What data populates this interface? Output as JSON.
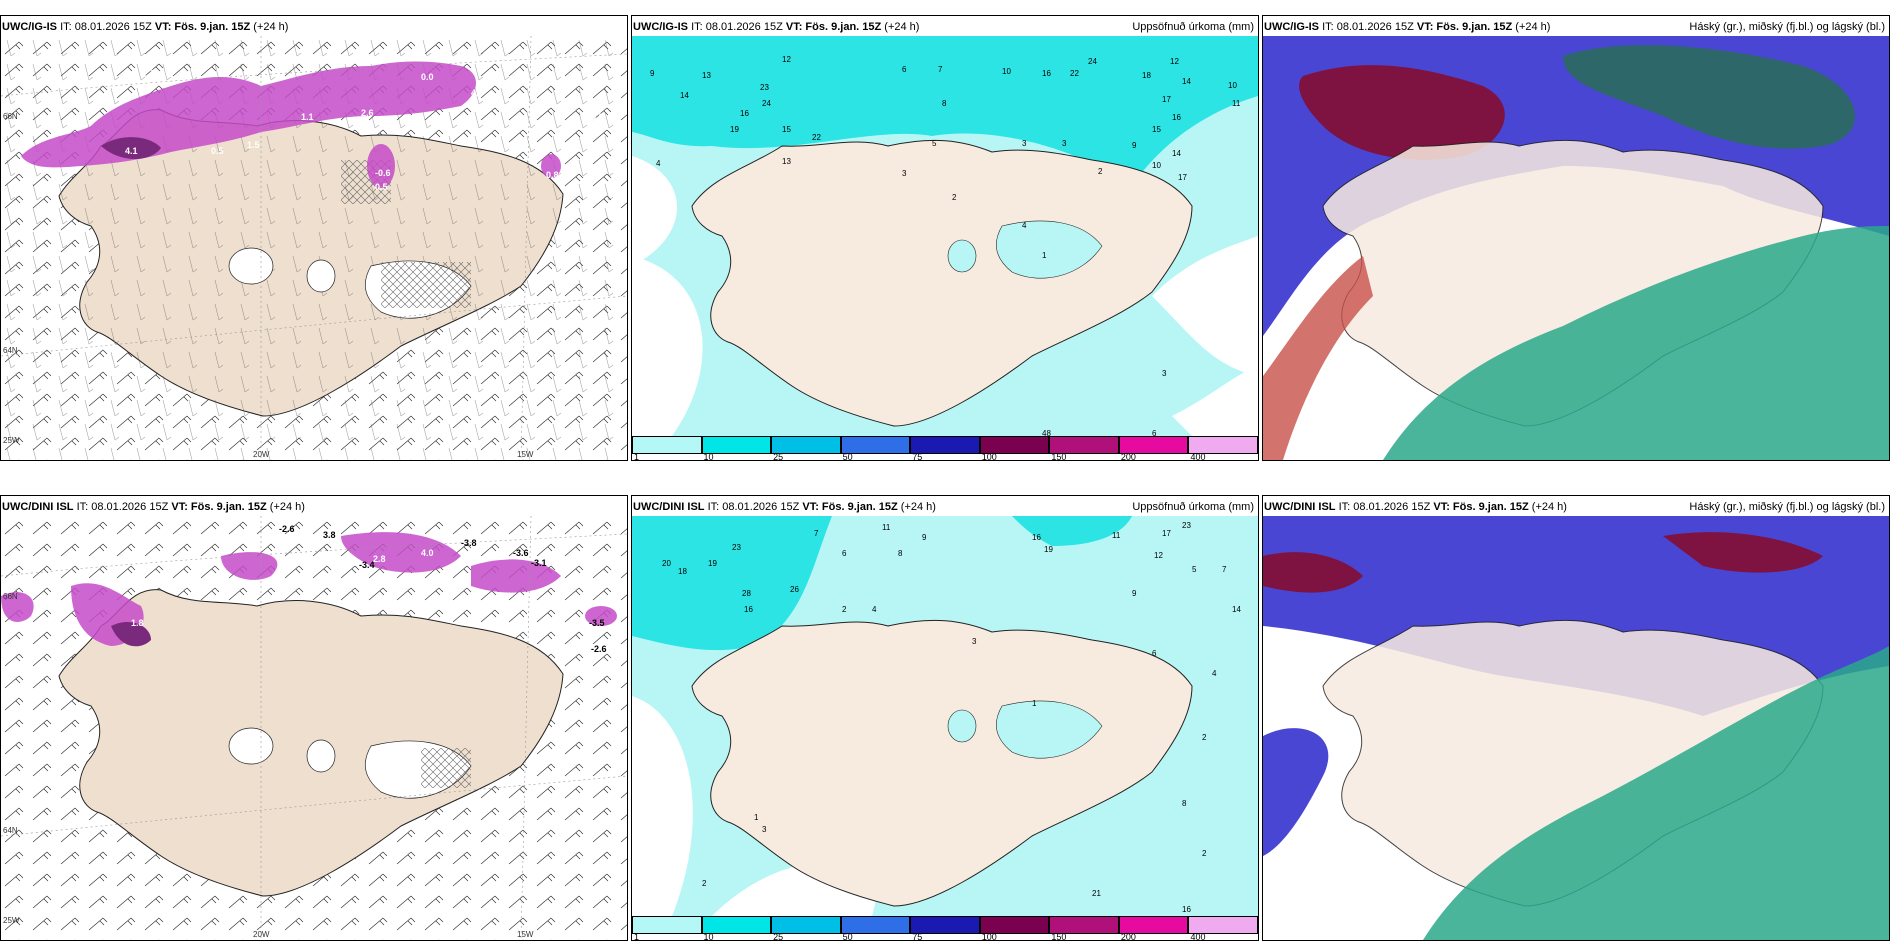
{
  "panels": [
    {
      "model": "UWC/IG-IS",
      "it": "IT: 08.01.2026 15Z",
      "vt_label": "VT:",
      "vt": "Fös. 9.jan. 15Z",
      "lead": "(+24 h)",
      "right": ""
    },
    {
      "model": "UWC/IG-IS",
      "it": "IT: 08.01.2026 15Z",
      "vt_label": "VT:",
      "vt": "Fös. 9.jan. 15Z",
      "lead": "(+24 h)",
      "right": "Uppsöfnuð úrkoma (mm)"
    },
    {
      "model": "UWC/IG-IS",
      "it": "IT: 08.01.2026 15Z",
      "vt_label": "VT:",
      "vt": "Fös. 9.jan. 15Z",
      "lead": "(+24 h)",
      "right": "Háský (gr.), miðský (fj.bl.) og lágský (bl.)"
    },
    {
      "model": "UWC/DINI ISL",
      "it": "IT: 08.01.2026 15Z",
      "vt_label": "VT:",
      "vt": "Fös. 9.jan. 15Z",
      "lead": "(+24 h)",
      "right": ""
    },
    {
      "model": "UWC/DINI ISL",
      "it": "IT: 08.01.2026 15Z",
      "vt_label": "VT:",
      "vt": "Fös. 9.jan. 15Z",
      "lead": "(+24 h)",
      "right": "Uppsöfnuð úrkoma (mm)"
    },
    {
      "model": "UWC/DINI ISL",
      "it": "IT: 08.01.2026 15Z",
      "vt_label": "VT:",
      "vt": "Fös. 9.jan. 15Z",
      "lead": "(+24 h)",
      "right": "Háský (gr.), miðský (fj.bl.) og lágský (bl.)"
    }
  ],
  "axis_labels": {
    "lon1": "20W",
    "lon2": "15W",
    "lat_top": "66N",
    "lat_mid": "64N",
    "lon_left": "25W"
  },
  "precip_legend": {
    "ticks": [
      "1",
      "10",
      "25",
      "50",
      "75",
      "100",
      "150",
      "200",
      "400"
    ],
    "colors": [
      "#b3f7f7",
      "#00e6e6",
      "#00bfe6",
      "#2e6ee6",
      "#1a1ab3",
      "#7a0050",
      "#b0107a",
      "#e60aa0",
      "#f0aaf0"
    ]
  },
  "top_temps": [
    {
      "v": "2.6"
    },
    {
      "v": "4.1"
    },
    {
      "v": "1.5"
    },
    {
      "v": "0.5"
    },
    {
      "v": "-0.6"
    },
    {
      "v": "0.5"
    },
    {
      "v": "1.1"
    },
    {
      "v": "5.0"
    },
    {
      "v": "0.8"
    },
    {
      "v": "4.0"
    },
    {
      "v": "1.2"
    },
    {
      "v": "0.0"
    }
  ],
  "bot_temps": [
    {
      "v": "-2.6"
    },
    {
      "v": "3.8"
    },
    {
      "v": "-3.4"
    },
    {
      "v": "-3.8"
    },
    {
      "v": "-3.6"
    },
    {
      "v": "-3.1"
    },
    {
      "v": "-2.6"
    },
    {
      "v": "-3.5"
    },
    {
      "v": "1.8"
    },
    {
      "v": "4.0"
    },
    {
      "v": "2.8"
    }
  ],
  "top_precip_values": [
    {
      "v": "9"
    },
    {
      "v": "14"
    },
    {
      "v": "13"
    },
    {
      "v": "23"
    },
    {
      "v": "12"
    },
    {
      "v": "16"
    },
    {
      "v": "24"
    },
    {
      "v": "15"
    },
    {
      "v": "19"
    },
    {
      "v": "22"
    },
    {
      "v": "13"
    },
    {
      "v": "4"
    },
    {
      "v": "6"
    },
    {
      "v": "7"
    },
    {
      "v": "8"
    },
    {
      "v": "10"
    },
    {
      "v": "16"
    },
    {
      "v": "22"
    },
    {
      "v": "24"
    },
    {
      "v": "18"
    },
    {
      "v": "12"
    },
    {
      "v": "14"
    },
    {
      "v": "10"
    },
    {
      "v": "11"
    },
    {
      "v": "17"
    },
    {
      "v": "15"
    },
    {
      "v": "3"
    },
    {
      "v": "2"
    },
    {
      "v": "1"
    },
    {
      "v": "4"
    },
    {
      "v": "5"
    },
    {
      "v": "3"
    },
    {
      "v": "2"
    },
    {
      "v": "3"
    },
    {
      "v": "10"
    },
    {
      "v": "9"
    },
    {
      "v": "14"
    },
    {
      "v": "17"
    },
    {
      "v": "16"
    },
    {
      "v": "48"
    },
    {
      "v": "6"
    },
    {
      "v": "3"
    }
  ],
  "bot_precip_values": [
    {
      "v": "20"
    },
    {
      "v": "18"
    },
    {
      "v": "19"
    },
    {
      "v": "23"
    },
    {
      "v": "28"
    },
    {
      "v": "26"
    },
    {
      "v": "16"
    },
    {
      "v": "7"
    },
    {
      "v": "6"
    },
    {
      "v": "11"
    },
    {
      "v": "9"
    },
    {
      "v": "8"
    },
    {
      "v": "16"
    },
    {
      "v": "19"
    },
    {
      "v": "11"
    },
    {
      "v": "17"
    },
    {
      "v": "23"
    },
    {
      "v": "12"
    },
    {
      "v": "5"
    },
    {
      "v": "7"
    },
    {
      "v": "14"
    },
    {
      "v": "9"
    },
    {
      "v": "2"
    },
    {
      "v": "4"
    },
    {
      "v": "3"
    },
    {
      "v": "1"
    },
    {
      "v": "6"
    },
    {
      "v": "4"
    },
    {
      "v": "2"
    },
    {
      "v": "8"
    },
    {
      "v": "2"
    },
    {
      "v": "21"
    },
    {
      "v": "16"
    },
    {
      "v": "2"
    },
    {
      "v": "3"
    },
    {
      "v": "1"
    }
  ],
  "colors": {
    "land": "#f7eadf",
    "land_wind": "#ecdccb",
    "cyan_light": "#b3f7f7",
    "cyan": "#00e6e6",
    "magenta": "#c040c8",
    "cloud_high": "#7a0a3c",
    "cloud_mid": "#4040d0",
    "cloud_low": "#1a9a7a"
  }
}
